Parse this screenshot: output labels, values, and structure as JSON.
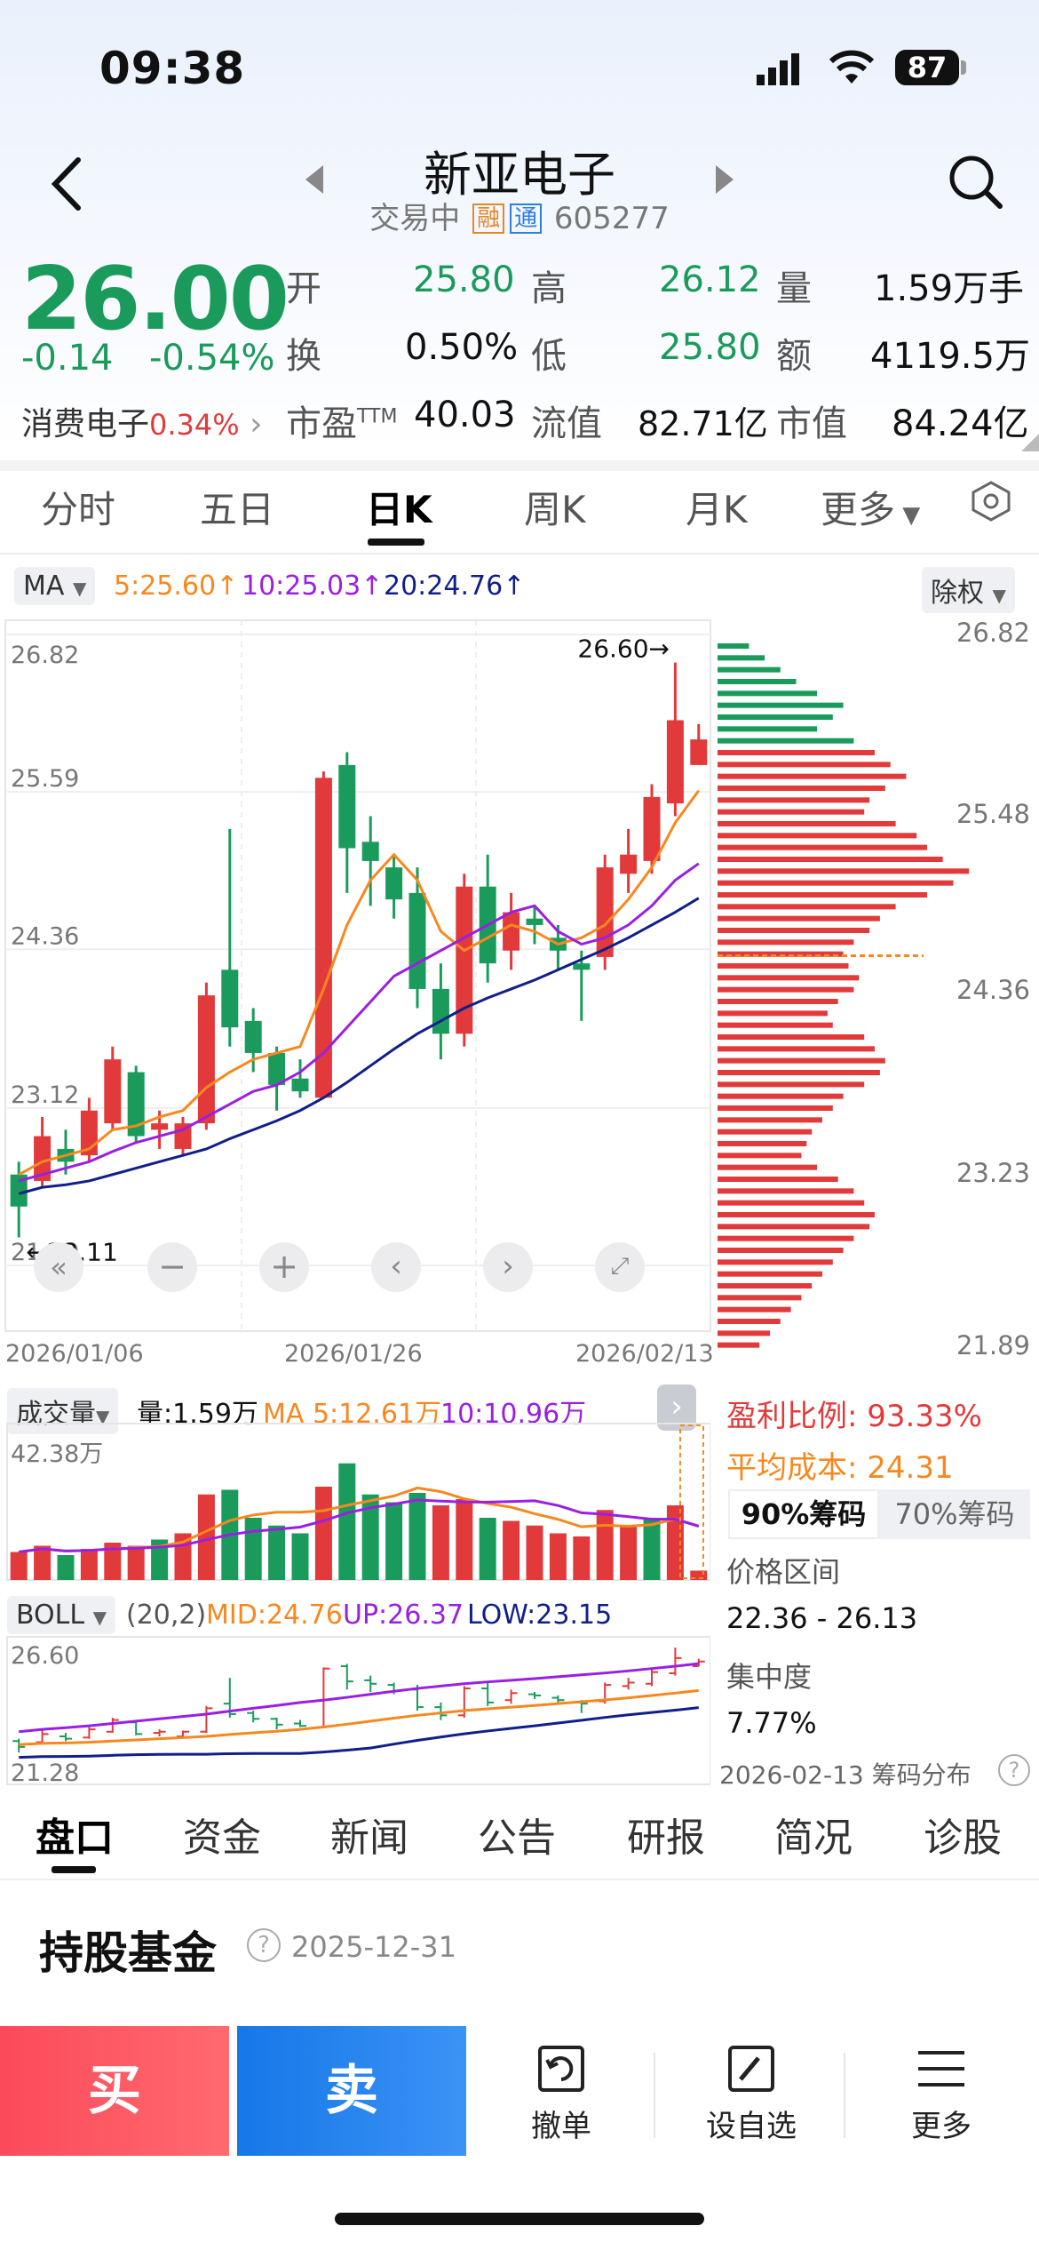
{
  "status_bar": {
    "time": "09:38",
    "battery": "87"
  },
  "header": {
    "title": "新亚电子",
    "trade_status": "交易中",
    "tag_margin": "融",
    "tag_connect": "通",
    "code": "605277"
  },
  "quote": {
    "price": "26.00",
    "change": "-0.14",
    "change_pct": "-0.54%",
    "sector_name": "消费电子",
    "sector_pct": "0.34%",
    "open_label": "开",
    "open": "25.80",
    "high_label": "高",
    "high": "26.12",
    "vol_label": "量",
    "vol": "1.59万手",
    "turnover_label": "换",
    "turnover": "0.50%",
    "low_label": "低",
    "low": "25.80",
    "amount_label": "额",
    "amount": "4119.5万",
    "pe_label": "市盈",
    "pe_sup": "TTM",
    "pe": "40.03",
    "float_label": "流值",
    "float_cap": "82.71亿",
    "cap_label": "市值",
    "market_cap": "84.24亿"
  },
  "period_tabs": [
    "分时",
    "五日",
    "日K",
    "周K",
    "月K",
    "更多"
  ],
  "ma_bar": {
    "label": "MA",
    "ma5": "5:25.60",
    "ma10": "10:25.03",
    "ma20": "20:24.76",
    "adjust": "除权"
  },
  "colors": {
    "up": "#e23a3a",
    "down": "#1a9b5c",
    "ma5": "#f7881f",
    "ma10": "#9a1fe3",
    "ma20": "#101f8a"
  },
  "chart_data": {
    "type": "candlestick",
    "price_axis_ticks": [
      "26.82",
      "25.59",
      "24.36",
      "23.12",
      "21.89"
    ],
    "date_ticks": [
      "2026/01/06",
      "2026/01/26",
      "2026/02/13"
    ],
    "ylim": [
      21.89,
      26.82
    ],
    "max_label": "26.60",
    "min_label": "22.11",
    "candles": [
      {
        "o": 22.6,
        "c": 22.35,
        "h": 22.7,
        "l": 22.11
      },
      {
        "o": 22.55,
        "c": 22.9,
        "h": 23.05,
        "l": 22.5
      },
      {
        "o": 22.8,
        "c": 22.7,
        "h": 22.95,
        "l": 22.6
      },
      {
        "o": 22.75,
        "c": 23.1,
        "h": 23.2,
        "l": 22.7
      },
      {
        "o": 23.0,
        "c": 23.5,
        "h": 23.6,
        "l": 22.95
      },
      {
        "o": 23.4,
        "c": 22.9,
        "h": 23.45,
        "l": 22.85
      },
      {
        "o": 22.95,
        "c": 23.0,
        "h": 23.1,
        "l": 22.8
      },
      {
        "o": 22.8,
        "c": 23.0,
        "h": 23.05,
        "l": 22.75
      },
      {
        "o": 23.0,
        "c": 24.0,
        "h": 24.1,
        "l": 22.95
      },
      {
        "o": 24.2,
        "c": 23.75,
        "h": 25.3,
        "l": 23.6
      },
      {
        "o": 23.8,
        "c": 23.55,
        "h": 23.9,
        "l": 23.4
      },
      {
        "o": 23.55,
        "c": 23.3,
        "h": 23.6,
        "l": 23.1
      },
      {
        "o": 23.35,
        "c": 23.25,
        "h": 23.5,
        "l": 23.2
      },
      {
        "o": 23.2,
        "c": 25.7,
        "h": 25.75,
        "l": 23.2
      },
      {
        "o": 25.8,
        "c": 25.15,
        "h": 25.9,
        "l": 24.8
      },
      {
        "o": 25.2,
        "c": 25.05,
        "h": 25.4,
        "l": 24.7
      },
      {
        "o": 25.0,
        "c": 24.75,
        "h": 25.1,
        "l": 24.6
      },
      {
        "o": 24.8,
        "c": 24.05,
        "h": 25.0,
        "l": 23.9
      },
      {
        "o": 24.05,
        "c": 23.7,
        "h": 24.25,
        "l": 23.5
      },
      {
        "o": 23.7,
        "c": 24.85,
        "h": 24.95,
        "l": 23.6
      },
      {
        "o": 24.85,
        "c": 24.25,
        "h": 25.1,
        "l": 24.1
      },
      {
        "o": 24.35,
        "c": 24.65,
        "h": 24.8,
        "l": 24.2
      },
      {
        "o": 24.6,
        "c": 24.55,
        "h": 24.7,
        "l": 24.4
      },
      {
        "o": 24.45,
        "c": 24.35,
        "h": 24.55,
        "l": 24.2
      },
      {
        "o": 24.25,
        "c": 24.2,
        "h": 24.35,
        "l": 23.8
      },
      {
        "o": 24.3,
        "c": 25.0,
        "h": 25.1,
        "l": 24.2
      },
      {
        "o": 24.95,
        "c": 25.1,
        "h": 25.3,
        "l": 24.8
      },
      {
        "o": 25.05,
        "c": 25.55,
        "h": 25.65,
        "l": 24.95
      },
      {
        "o": 25.5,
        "c": 26.15,
        "h": 26.6,
        "l": 25.4
      },
      {
        "o": 25.8,
        "c": 26.0,
        "h": 26.12,
        "l": 25.8
      }
    ],
    "ma5": [
      22.6,
      22.7,
      22.75,
      22.8,
      22.95,
      22.98,
      23.05,
      23.1,
      23.28,
      23.4,
      23.5,
      23.55,
      23.6,
      24.05,
      24.55,
      24.9,
      25.1,
      24.9,
      24.5,
      24.35,
      24.45,
      24.55,
      24.5,
      24.4,
      24.45,
      24.55,
      24.75,
      25.0,
      25.35,
      25.6
    ],
    "ma10": [
      22.55,
      22.6,
      22.65,
      22.7,
      22.78,
      22.85,
      22.9,
      22.95,
      23.05,
      23.15,
      23.25,
      23.3,
      23.4,
      23.55,
      23.75,
      23.95,
      24.15,
      24.25,
      24.35,
      24.45,
      24.55,
      24.65,
      24.7,
      24.5,
      24.4,
      24.45,
      24.55,
      24.7,
      24.9,
      25.03
    ],
    "ma20": [
      22.45,
      22.5,
      22.52,
      22.55,
      22.6,
      22.65,
      22.7,
      22.75,
      22.8,
      22.88,
      22.95,
      23.02,
      23.1,
      23.2,
      23.32,
      23.45,
      23.58,
      23.7,
      23.8,
      23.9,
      23.98,
      24.05,
      24.12,
      24.2,
      24.28,
      24.36,
      24.45,
      24.55,
      24.65,
      24.76
    ]
  },
  "chip_axis": [
    "26.82",
    "25.48",
    "24.36",
    "23.23",
    "21.89"
  ],
  "chip_dist": [
    30,
    45,
    60,
    75,
    95,
    120,
    110,
    95,
    130,
    150,
    165,
    180,
    160,
    145,
    140,
    170,
    190,
    200,
    215,
    240,
    225,
    200,
    170,
    155,
    145,
    130,
    120,
    125,
    135,
    130,
    115,
    105,
    110,
    140,
    150,
    160,
    155,
    140,
    120,
    110,
    100,
    90,
    85,
    80,
    95,
    115,
    130,
    140,
    150,
    145,
    130,
    120,
    110,
    100,
    90,
    80,
    70,
    60,
    50,
    40
  ],
  "volume": {
    "label": "成交量",
    "vol": "量:1.59万",
    "ma5": "MA 5:12.61万",
    "ma10": "10:10.96万",
    "max_label": "42.38万",
    "bars": [
      {
        "v": 18,
        "up": true
      },
      {
        "v": 22,
        "up": true
      },
      {
        "v": 16,
        "up": false
      },
      {
        "v": 20,
        "up": true
      },
      {
        "v": 24,
        "up": true
      },
      {
        "v": 22,
        "up": true
      },
      {
        "v": 26,
        "up": false
      },
      {
        "v": 30,
        "up": true
      },
      {
        "v": 55,
        "up": true
      },
      {
        "v": 58,
        "up": false
      },
      {
        "v": 40,
        "up": false
      },
      {
        "v": 35,
        "up": false
      },
      {
        "v": 30,
        "up": false
      },
      {
        "v": 60,
        "up": true
      },
      {
        "v": 75,
        "up": false
      },
      {
        "v": 55,
        "up": false
      },
      {
        "v": 50,
        "up": false
      },
      {
        "v": 56,
        "up": false
      },
      {
        "v": 48,
        "up": true
      },
      {
        "v": 52,
        "up": true
      },
      {
        "v": 40,
        "up": false
      },
      {
        "v": 38,
        "up": true
      },
      {
        "v": 35,
        "up": true
      },
      {
        "v": 30,
        "up": true
      },
      {
        "v": 28,
        "up": true
      },
      {
        "v": 45,
        "up": true
      },
      {
        "v": 35,
        "up": true
      },
      {
        "v": 40,
        "up": false
      },
      {
        "v": 48,
        "up": true
      },
      {
        "v": 6,
        "up": true
      }
    ]
  },
  "boll": {
    "label": "BOLL",
    "params": "(20,2)",
    "mid": "MID:24.76",
    "up": "UP:26.37",
    "low": "LOW:23.15",
    "top_label": "26.60",
    "bottom_label": "21.28"
  },
  "chip_panel": {
    "profit_label": "盈利比例:",
    "profit": "93.33%",
    "cost_label": "平均成本:",
    "cost": "24.31",
    "tab90": "90%筹码",
    "tab70": "70%筹码",
    "range_label": "价格区间",
    "range": "22.36 - 26.13",
    "conc_label": "集中度",
    "conc": "7.77%",
    "footer": "2026-02-13 筹码分布"
  },
  "bottom_tabs": [
    "盘口",
    "资金",
    "新闻",
    "公告",
    "研报",
    "简况",
    "诊股"
  ],
  "funds": {
    "title": "持股基金",
    "date": "2025-12-31"
  },
  "actions": {
    "buy": "买",
    "sell": "卖",
    "cancel": "撤单",
    "watch": "设自选",
    "more": "更多"
  }
}
